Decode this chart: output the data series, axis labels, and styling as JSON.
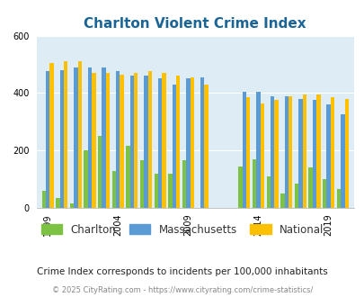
{
  "title": "Charlton Violent Crime Index",
  "charlton": [
    60,
    35,
    15,
    200,
    250,
    130,
    215,
    165,
    120,
    120,
    165,
    0,
    145,
    170,
    110,
    50,
    85,
    140,
    100,
    65
  ],
  "massachusetts": [
    475,
    480,
    490,
    490,
    490,
    475,
    460,
    460,
    450,
    430,
    450,
    455,
    405,
    405,
    390,
    390,
    380,
    375,
    360,
    325
  ],
  "national": [
    505,
    510,
    510,
    470,
    470,
    465,
    470,
    475,
    470,
    460,
    455,
    430,
    385,
    365,
    375,
    390,
    395,
    395,
    385,
    380
  ],
  "x_positions": [
    0,
    1,
    2,
    3,
    4,
    5,
    6,
    7,
    8,
    9,
    10,
    11,
    14,
    15,
    16,
    17,
    18,
    19,
    20,
    21
  ],
  "bar_colors": {
    "charlton": "#7dc242",
    "massachusetts": "#5b9bd5",
    "national": "#ffc000"
  },
  "background_color": "#deedf5",
  "ylim": [
    0,
    600
  ],
  "yticks": [
    0,
    200,
    400,
    600
  ],
  "title_color": "#1a6496",
  "title_fontsize": 11,
  "legend_labels": [
    "Charlton",
    "Massachusetts",
    "National"
  ],
  "subtitle": "Crime Index corresponds to incidents per 100,000 inhabitants",
  "footer": "© 2025 CityRating.com - https://www.cityrating.com/crime-statistics/",
  "subtitle_color": "#222222",
  "footer_color": "#888888",
  "xtick_map": {
    "0": "1999",
    "5": "2004",
    "10": "2009",
    "15": "2014",
    "20": "2019"
  }
}
